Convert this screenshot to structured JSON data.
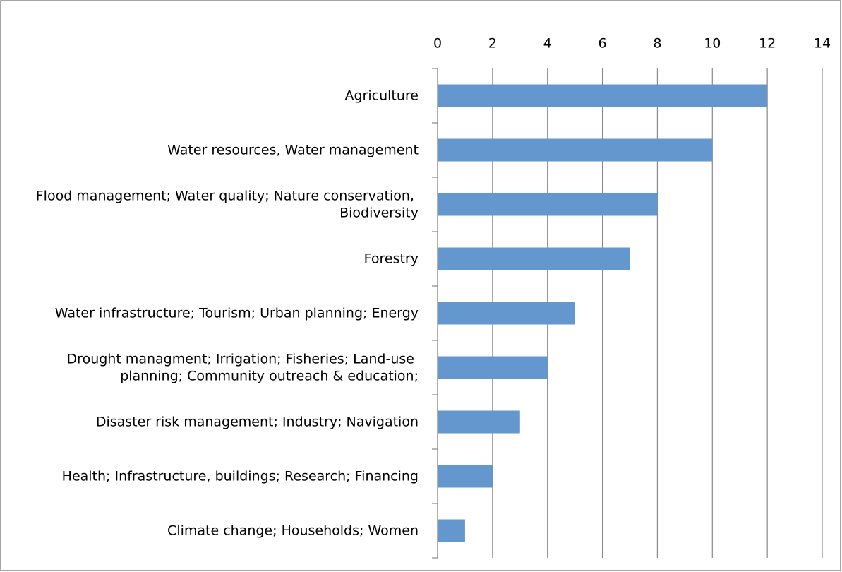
{
  "chart_data": {
    "type": "bar",
    "orientation": "horizontal",
    "categories": [
      "Agriculture",
      "Water resources, Water management",
      "Flood management; Water quality; Nature conservation, Biodiversity",
      "Forestry",
      "Water infrastructure; Tourism; Urban planning; Energy",
      "Drought managment; Irrigation; Fisheries; Land-use planning; Community outreach & education;",
      "Disaster risk management; Industry; Navigation",
      "Health; Infrastructure, buildings; Research; Financing",
      "Climate change; Households; Women"
    ],
    "values": [
      12,
      10,
      8,
      7,
      5,
      4,
      3,
      2,
      1
    ],
    "color": "#6497cd",
    "xlim": [
      0,
      14
    ],
    "xticks": [
      0,
      2,
      4,
      6,
      8,
      10,
      12,
      14
    ],
    "grid": true
  }
}
